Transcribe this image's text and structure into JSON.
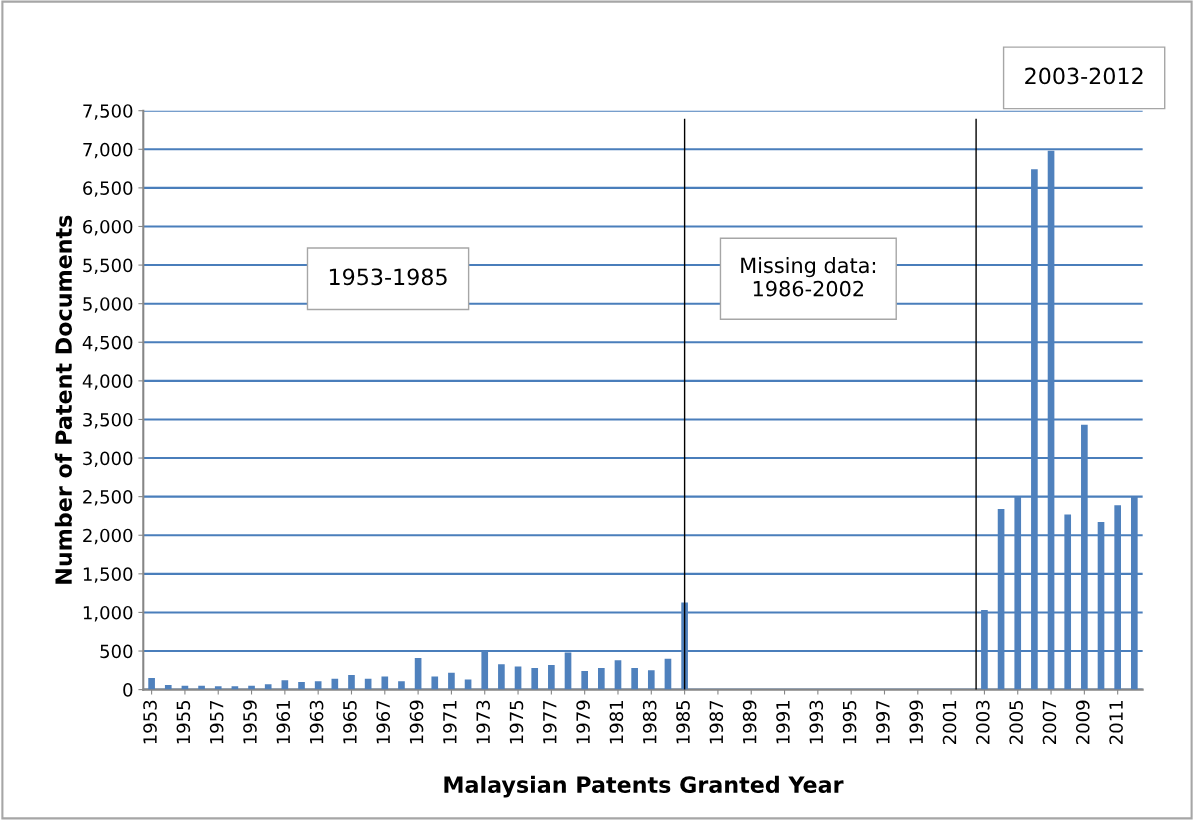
{
  "chart_data": {
    "type": "bar",
    "xlabel": "Malaysian Patents Granted Year",
    "ylabel": "Number of Patent Documents",
    "x": [
      1953,
      1954,
      1955,
      1956,
      1957,
      1958,
      1959,
      1960,
      1961,
      1962,
      1963,
      1964,
      1965,
      1966,
      1967,
      1968,
      1969,
      1970,
      1971,
      1972,
      1973,
      1974,
      1975,
      1976,
      1977,
      1978,
      1979,
      1980,
      1981,
      1982,
      1983,
      1984,
      1985,
      1986,
      1987,
      1988,
      1989,
      1990,
      1991,
      1992,
      1993,
      1994,
      1995,
      1996,
      1997,
      1998,
      1999,
      2000,
      2001,
      2002,
      2003,
      2004,
      2005,
      2006,
      2007,
      2008,
      2009,
      2010,
      2011,
      2012
    ],
    "values": [
      150,
      60,
      50,
      50,
      45,
      45,
      50,
      70,
      120,
      100,
      110,
      140,
      190,
      140,
      170,
      110,
      410,
      170,
      220,
      130,
      500,
      330,
      300,
      280,
      320,
      480,
      240,
      280,
      380,
      280,
      250,
      400,
      1130,
      null,
      null,
      null,
      null,
      null,
      null,
      null,
      null,
      null,
      null,
      null,
      null,
      null,
      null,
      null,
      null,
      null,
      1030,
      2340,
      2500,
      6740,
      6980,
      2270,
      3430,
      2170,
      2390,
      2500
    ],
    "color": "#4f81bd",
    "xlim": [
      1952.5,
      2012.5
    ],
    "xticks": [
      1953,
      1955,
      1957,
      1959,
      1961,
      1963,
      1965,
      1967,
      1969,
      1971,
      1973,
      1975,
      1977,
      1979,
      1981,
      1983,
      1985,
      1987,
      1989,
      1991,
      1993,
      1995,
      1997,
      1999,
      2001,
      2003,
      2005,
      2007,
      2009,
      2011
    ],
    "ylim": [
      0,
      7500
    ],
    "yticks": [
      {
        "value": 0,
        "label": "0"
      },
      {
        "value": 500,
        "label": "500"
      },
      {
        "value": 1000,
        "label": "1,000"
      },
      {
        "value": 1500,
        "label": "1,500"
      },
      {
        "value": 2000,
        "label": "2,000"
      },
      {
        "value": 2500,
        "label": "2,500"
      },
      {
        "value": 3000,
        "label": "3,000"
      },
      {
        "value": 3500,
        "label": "3,500"
      },
      {
        "value": 4000,
        "label": "4,000"
      },
      {
        "value": 4500,
        "label": "4,500"
      },
      {
        "value": 5000,
        "label": "5,000"
      },
      {
        "value": 5500,
        "label": "5,500"
      },
      {
        "value": 6000,
        "label": "6,000"
      },
      {
        "value": 6500,
        "label": "6,500"
      },
      {
        "value": 7000,
        "label": "7,000"
      },
      {
        "value": 7500,
        "label": "7,500"
      }
    ],
    "grid": "y",
    "ref_lines": [
      {
        "axis": "x",
        "value": 1985,
        "color": "#000000"
      },
      {
        "axis": "x",
        "value": 2002.5,
        "color": "#000000"
      }
    ],
    "annotations": [
      "1953-1985",
      "Missing data:\n1986-2002",
      "2003-2012"
    ]
  }
}
